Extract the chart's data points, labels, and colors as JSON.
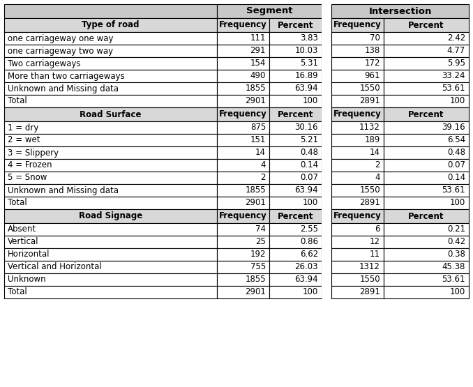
{
  "sections": [
    {
      "header": "Type of road",
      "rows": [
        [
          "one carriageway one way",
          "111",
          "3.83",
          "70",
          "2.42"
        ],
        [
          "one carriageway two way",
          "291",
          "10.03",
          "138",
          "4.77"
        ],
        [
          "Two carriageways",
          "154",
          "5.31",
          "172",
          "5.95"
        ],
        [
          "More than two carriageways",
          "490",
          "16.89",
          "961",
          "33.24"
        ],
        [
          "Unknown and Missing data",
          "1855",
          "63.94",
          "1550",
          "53.61"
        ],
        [
          "Total",
          "2901",
          "100",
          "2891",
          "100"
        ]
      ]
    },
    {
      "header": "Road Surface",
      "rows": [
        [
          "1 = dry",
          "875",
          "30.16",
          "1132",
          "39.16"
        ],
        [
          "2 = wet",
          "151",
          "5.21",
          "189",
          "6.54"
        ],
        [
          "3 = Slippery",
          "14",
          "0.48",
          "14",
          "0.48"
        ],
        [
          "4 = Frozen",
          "4",
          "0.14",
          "2",
          "0.07"
        ],
        [
          "5 = Snow",
          "2",
          "0.07",
          "4",
          "0.14"
        ],
        [
          "Unknown and Missing data",
          "1855",
          "63.94",
          "1550",
          "53.61"
        ],
        [
          "Total",
          "2901",
          "100",
          "2891",
          "100"
        ]
      ]
    },
    {
      "header": "Road Signage",
      "rows": [
        [
          "Absent",
          "74",
          "2.55",
          "6",
          "0.21"
        ],
        [
          "Vertical",
          "25",
          "0.86",
          "12",
          "0.42"
        ],
        [
          "Horizontal",
          "192",
          "6.62",
          "11",
          "0.38"
        ],
        [
          "Vertical and Horizontal",
          "755",
          "26.03",
          "1312",
          "45.38"
        ],
        [
          "Unknown",
          "1855",
          "63.94",
          "1550",
          "53.61"
        ],
        [
          "Total",
          "2901",
          "100",
          "2891",
          "100"
        ]
      ]
    }
  ],
  "header_bg": "#c8c8c8",
  "subheader_bg": "#d8d8d8",
  "white_bg": "#ffffff",
  "gap_bg": "#ffffff",
  "border_color": "#000000",
  "text_color": "#000000",
  "figw": 6.78,
  "figh": 5.55,
  "dpi": 100
}
